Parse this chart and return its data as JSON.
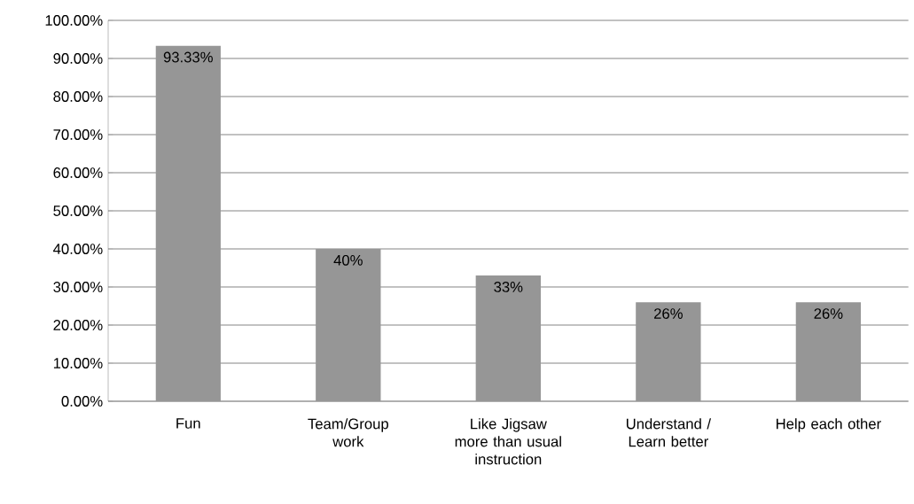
{
  "chart_data": {
    "type": "bar",
    "categories": [
      "Fun",
      "Team/Group work",
      "Like Jigsaw more than usual instruction",
      "Understand / Learn better",
      "Help each other"
    ],
    "values": [
      93.33,
      40,
      33,
      26,
      26
    ],
    "value_labels": [
      "93.33%",
      "40%",
      "33%",
      "26%",
      "26%"
    ],
    "color": "#969696",
    "ylim": [
      0,
      100
    ],
    "yticks": [
      {
        "value": 0,
        "label": "0.00%"
      },
      {
        "value": 10,
        "label": "10.00%"
      },
      {
        "value": 20,
        "label": "20.00%"
      },
      {
        "value": 30,
        "label": "30.00%"
      },
      {
        "value": 40,
        "label": "40.00%"
      },
      {
        "value": 50,
        "label": "50.00%"
      },
      {
        "value": 60,
        "label": "60.00%"
      },
      {
        "value": 70,
        "label": "70.00%"
      },
      {
        "value": 80,
        "label": "80.00%"
      },
      {
        "value": 90,
        "label": "90.00%"
      },
      {
        "value": 100,
        "label": "100.00%"
      }
    ],
    "grid": "y"
  }
}
